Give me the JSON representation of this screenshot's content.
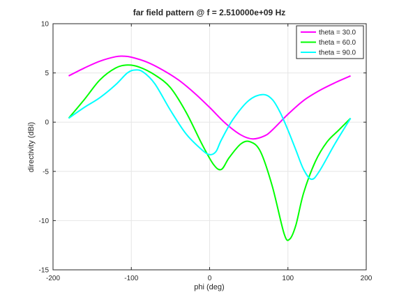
{
  "chart_data": {
    "type": "line",
    "title": "far field pattern @ f = 2.510000e+09 Hz",
    "xlabel": "phi (deg)",
    "ylabel": "directivity (dBi)",
    "xlim": [
      -200,
      200
    ],
    "ylim": [
      -15,
      10
    ],
    "xticks": [
      -200,
      -100,
      0,
      100,
      200
    ],
    "yticks": [
      -15,
      -10,
      -5,
      0,
      5,
      10
    ],
    "xtick_labels": [
      "-200",
      "-100",
      "0",
      "100",
      "200"
    ],
    "ytick_labels": [
      "-15",
      "-10",
      "-5",
      "0",
      "5",
      "10"
    ],
    "grid": true,
    "legend_position": "top-right",
    "series": [
      {
        "name": "theta = 30.0",
        "color": "#ff00ff",
        "x": [
          -180,
          -160,
          -140,
          -120,
          -110,
          -100,
          -80,
          -60,
          -40,
          -20,
          0,
          20,
          40,
          55,
          70,
          80,
          100,
          120,
          140,
          160,
          180
        ],
        "y": [
          4.7,
          5.5,
          6.2,
          6.65,
          6.7,
          6.6,
          6.1,
          5.3,
          4.3,
          3.0,
          1.5,
          -0.1,
          -1.3,
          -1.7,
          -1.4,
          -0.8,
          0.8,
          2.2,
          3.2,
          4.0,
          4.7
        ]
      },
      {
        "name": "theta = 60.0",
        "color": "#00ff00",
        "x": [
          -180,
          -160,
          -140,
          -120,
          -105,
          -90,
          -70,
          -50,
          -30,
          -10,
          5,
          15,
          25,
          40,
          52,
          65,
          80,
          95,
          102,
          110,
          120,
          135,
          150,
          165,
          180
        ],
        "y": [
          0.4,
          2.3,
          4.3,
          5.5,
          5.8,
          5.6,
          4.8,
          3.5,
          1.0,
          -2.2,
          -4.3,
          -4.8,
          -3.6,
          -2.2,
          -2.0,
          -3.0,
          -6.5,
          -11.3,
          -11.9,
          -10.5,
          -7.2,
          -4.0,
          -2.0,
          -0.8,
          0.4
        ]
      },
      {
        "name": "theta = 90.0",
        "color": "#00ffff",
        "x": [
          -180,
          -160,
          -140,
          -120,
          -105,
          -95,
          -85,
          -70,
          -50,
          -30,
          -10,
          0,
          8,
          15,
          30,
          50,
          68,
          80,
          90,
          100,
          110,
          120,
          130,
          140,
          160,
          180
        ],
        "y": [
          0.4,
          1.5,
          2.5,
          3.8,
          5.0,
          5.3,
          5.1,
          3.9,
          1.2,
          -1.2,
          -2.8,
          -3.3,
          -3.0,
          -1.8,
          0.3,
          2.2,
          2.8,
          2.3,
          1.0,
          -0.8,
          -2.8,
          -4.8,
          -5.8,
          -5.0,
          -2.2,
          0.4
        ]
      }
    ]
  }
}
